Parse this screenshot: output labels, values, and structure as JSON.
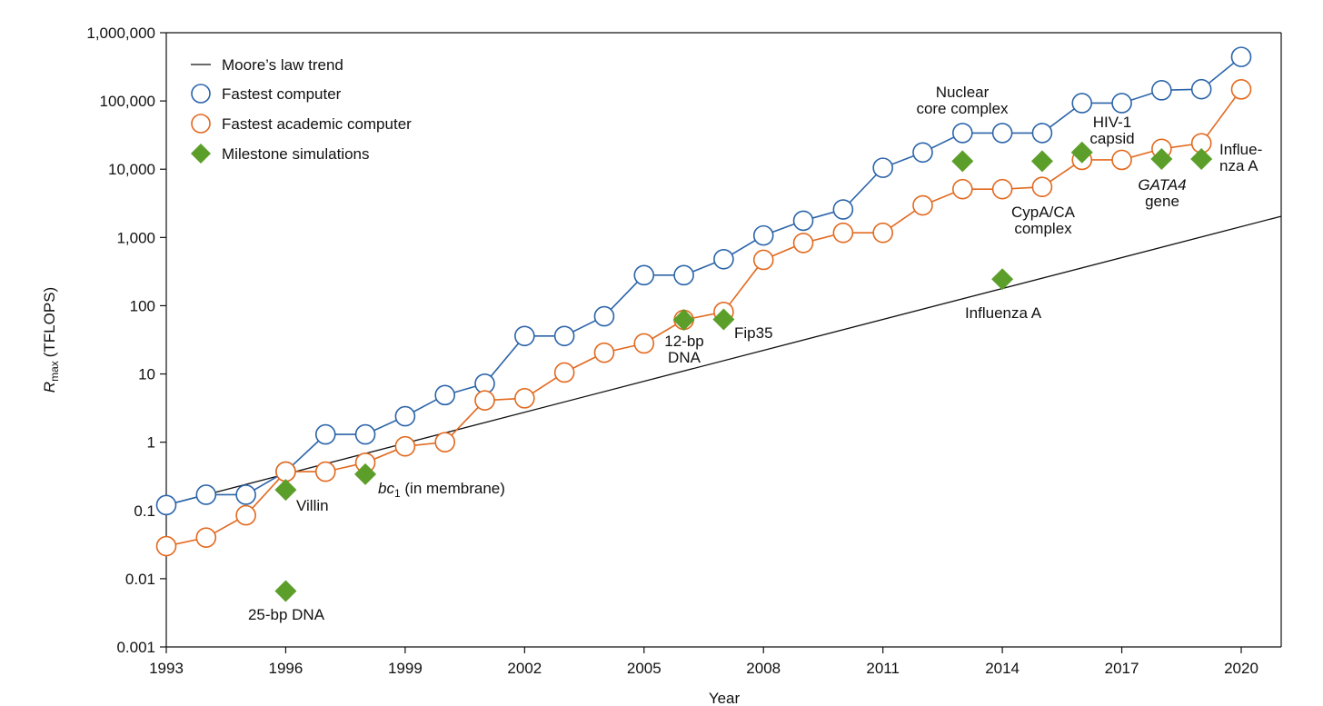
{
  "chart_data": {
    "type": "scatter",
    "title": "",
    "xlabel": "Year",
    "ylabel": "R",
    "ylabel_subscript": "max",
    "ylabel_unit": "(TFLOPS)",
    "yscale": "log",
    "xlim": [
      1993,
      2021
    ],
    "ylim": [
      0.001,
      1000000
    ],
    "x_ticks": [
      1993,
      1996,
      1999,
      2002,
      2005,
      2008,
      2011,
      2014,
      2017,
      2020
    ],
    "x_tick_labels": [
      "1993",
      "1996",
      "1999",
      "2002",
      "2005",
      "2008",
      "2011",
      "2014",
      "2017",
      "2020"
    ],
    "y_ticks": [
      0.001,
      0.01,
      0.1,
      1,
      10,
      100,
      1000,
      10000,
      100000,
      1000000
    ],
    "y_tick_labels": [
      "0.001",
      "0.01",
      "0.1",
      "1",
      "10",
      "100",
      "1,000",
      "10,000",
      "100,000",
      "1,000,000"
    ],
    "grid": false,
    "legend_position": "top-left",
    "legend": [
      "Moore’s law trend",
      "Fastest computer",
      "Fastest academic computer",
      "Milestone simulations"
    ],
    "colors": {
      "fastest": "#2b64a9",
      "academic": "#e2691f",
      "milestone": "#5c9e2a",
      "trend": "#111111"
    },
    "series": [
      {
        "name": "Moore’s law trend",
        "type": "line",
        "x": [
          1993,
          2021
        ],
        "y": [
          0.12,
          2040
        ]
      },
      {
        "name": "Fastest computer",
        "type": "line-marker",
        "x": [
          1993,
          1994,
          1995,
          1996,
          1997,
          1998,
          1999,
          2000,
          2001,
          2002,
          2003,
          2004,
          2005,
          2006,
          2007,
          2008,
          2009,
          2010,
          2011,
          2012,
          2013,
          2014,
          2015,
          2016,
          2017,
          2018,
          2019,
          2020
        ],
        "y": [
          0.12,
          0.17,
          0.17,
          0.37,
          1.3,
          1.3,
          2.4,
          4.9,
          7.2,
          36,
          36,
          70,
          280,
          280,
          480,
          1070,
          1760,
          2570,
          10500,
          17600,
          33900,
          33900,
          33900,
          93000,
          93000,
          143500,
          148600,
          442000
        ]
      },
      {
        "name": "Fastest academic computer",
        "type": "line-marker",
        "x": [
          1993,
          1994,
          1995,
          1996,
          1997,
          1998,
          1999,
          2000,
          2001,
          2002,
          2003,
          2004,
          2005,
          2006,
          2007,
          2008,
          2009,
          2010,
          2011,
          2012,
          2013,
          2014,
          2015,
          2016,
          2017,
          2018,
          2019,
          2020
        ],
        "y": [
          0.03,
          0.04,
          0.085,
          0.37,
          0.37,
          0.5,
          0.87,
          1.0,
          4.1,
          4.4,
          10.5,
          20.5,
          28,
          62,
          81,
          470,
          830,
          1170,
          1170,
          2950,
          5100,
          5100,
          5500,
          13700,
          13700,
          19900,
          24000,
          148000
        ]
      },
      {
        "name": "Milestone simulations",
        "type": "scatter",
        "points": [
          {
            "x": 1996,
            "y": 0.2,
            "label": [
              "Villin"
            ]
          },
          {
            "x": 1996,
            "y": 0.0066,
            "label": [
              "25-bp DNA"
            ]
          },
          {
            "x": 1998,
            "y": 0.34,
            "label_italic": "bc",
            "label_sub": "1",
            "label": [
              " (in membrane)"
            ]
          },
          {
            "x": 2006,
            "y": 62,
            "label": [
              "12-bp",
              "DNA"
            ]
          },
          {
            "x": 2007,
            "y": 63,
            "label": [
              "Fip35"
            ]
          },
          {
            "x": 2014,
            "y": 245,
            "label": [
              "Influenza A"
            ]
          },
          {
            "x": 2013,
            "y": 13100,
            "label": [
              "Nuclear",
              "core complex"
            ]
          },
          {
            "x": 2015,
            "y": 13100,
            "label": [
              "CypA/CA",
              "complex"
            ]
          },
          {
            "x": 2016,
            "y": 17600,
            "label": [
              "HIV-1",
              "capsid"
            ]
          },
          {
            "x": 2018,
            "y": 14100,
            "label": [
              "GATA4",
              "gene"
            ],
            "italic_first_line": true
          },
          {
            "x": 2019,
            "y": 14100,
            "label": [
              "Influe-",
              "nza A"
            ]
          }
        ]
      }
    ]
  }
}
